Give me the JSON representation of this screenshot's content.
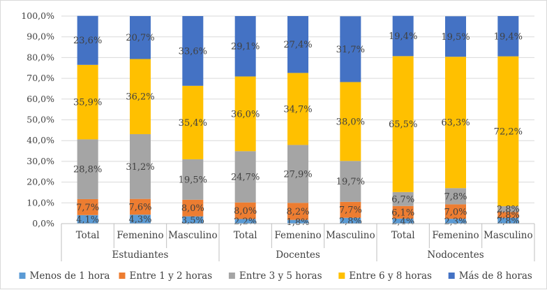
{
  "chart_data": {
    "type": "bar",
    "stacked": true,
    "percent": true,
    "title": "",
    "xlabel": "",
    "ylabel": "",
    "ylim": [
      0,
      100
    ],
    "yticks": [
      "0,0%",
      "10,0%",
      "20,0%",
      "30,0%",
      "40,0%",
      "50,0%",
      "60,0%",
      "70,0%",
      "80,0%",
      "90,0%",
      "100,0%"
    ],
    "grid": true,
    "legend_position": "bottom",
    "groups": [
      {
        "name": "Estudiantes",
        "categories": [
          "Total",
          "Femenino",
          "Masculino"
        ]
      },
      {
        "name": "Docentes",
        "categories": [
          "Total",
          "Femenino",
          "Masculino"
        ]
      },
      {
        "name": "Nodocentes",
        "categories": [
          "Total",
          "Femenino",
          "Masculino"
        ]
      }
    ],
    "categories": [
      "Estudiantes - Total",
      "Estudiantes - Femenino",
      "Estudiantes - Masculino",
      "Docentes - Total",
      "Docentes - Femenino",
      "Docentes - Masculino",
      "Nodocentes - Total",
      "Nodocentes - Femenino",
      "Nodocentes - Masculino"
    ],
    "series": [
      {
        "name": "Menos de 1 hora",
        "color": "#5b9bd5",
        "values": [
          4.1,
          4.3,
          3.5,
          2.2,
          1.8,
          2.8,
          2.4,
          2.3,
          2.8
        ],
        "labels": [
          "4,1%",
          "4,3%",
          "3,5%",
          "2,2%",
          "1,8%",
          "2,8%",
          "2,4%",
          "2,3%",
          "2,8%"
        ]
      },
      {
        "name": "Entre 1 y 2 horas",
        "color": "#ed7d31",
        "values": [
          7.7,
          7.6,
          8.0,
          8.0,
          8.2,
          7.7,
          6.1,
          7.0,
          2.8
        ],
        "labels": [
          "7,7%",
          "7,6%",
          "8,0%",
          "8,0%",
          "8,2%",
          "7,7%",
          "6,1%",
          "7,0%",
          "2,8%"
        ]
      },
      {
        "name": "Entre 3 y 5 horas",
        "color": "#a5a5a5",
        "values": [
          28.8,
          31.2,
          19.5,
          24.7,
          27.9,
          19.7,
          6.7,
          7.8,
          2.8
        ],
        "labels": [
          "28,8%",
          "31,2%",
          "19,5%",
          "24,7%",
          "27,9%",
          "19,7%",
          "6,7%",
          "7,8%",
          "2,8%"
        ]
      },
      {
        "name": "Entre 6 y 8 horas",
        "color": "#ffc000",
        "values": [
          35.9,
          36.2,
          35.4,
          36.0,
          34.7,
          38.0,
          65.5,
          63.3,
          72.2
        ],
        "labels": [
          "35,9%",
          "36,2%",
          "35,4%",
          "36,0%",
          "34,7%",
          "38,0%",
          "65,5%",
          "63,3%",
          "72,2%"
        ]
      },
      {
        "name": "Más de 8 horas",
        "color": "#4472c4",
        "values": [
          23.6,
          20.7,
          33.6,
          29.1,
          27.4,
          31.7,
          19.4,
          19.5,
          19.4
        ],
        "labels": [
          "23,6%",
          "20,7%",
          "33,6%",
          "29,1%",
          "27,4%",
          "31,7%",
          "19,4%",
          "19,5%",
          "19,4%"
        ]
      }
    ]
  }
}
